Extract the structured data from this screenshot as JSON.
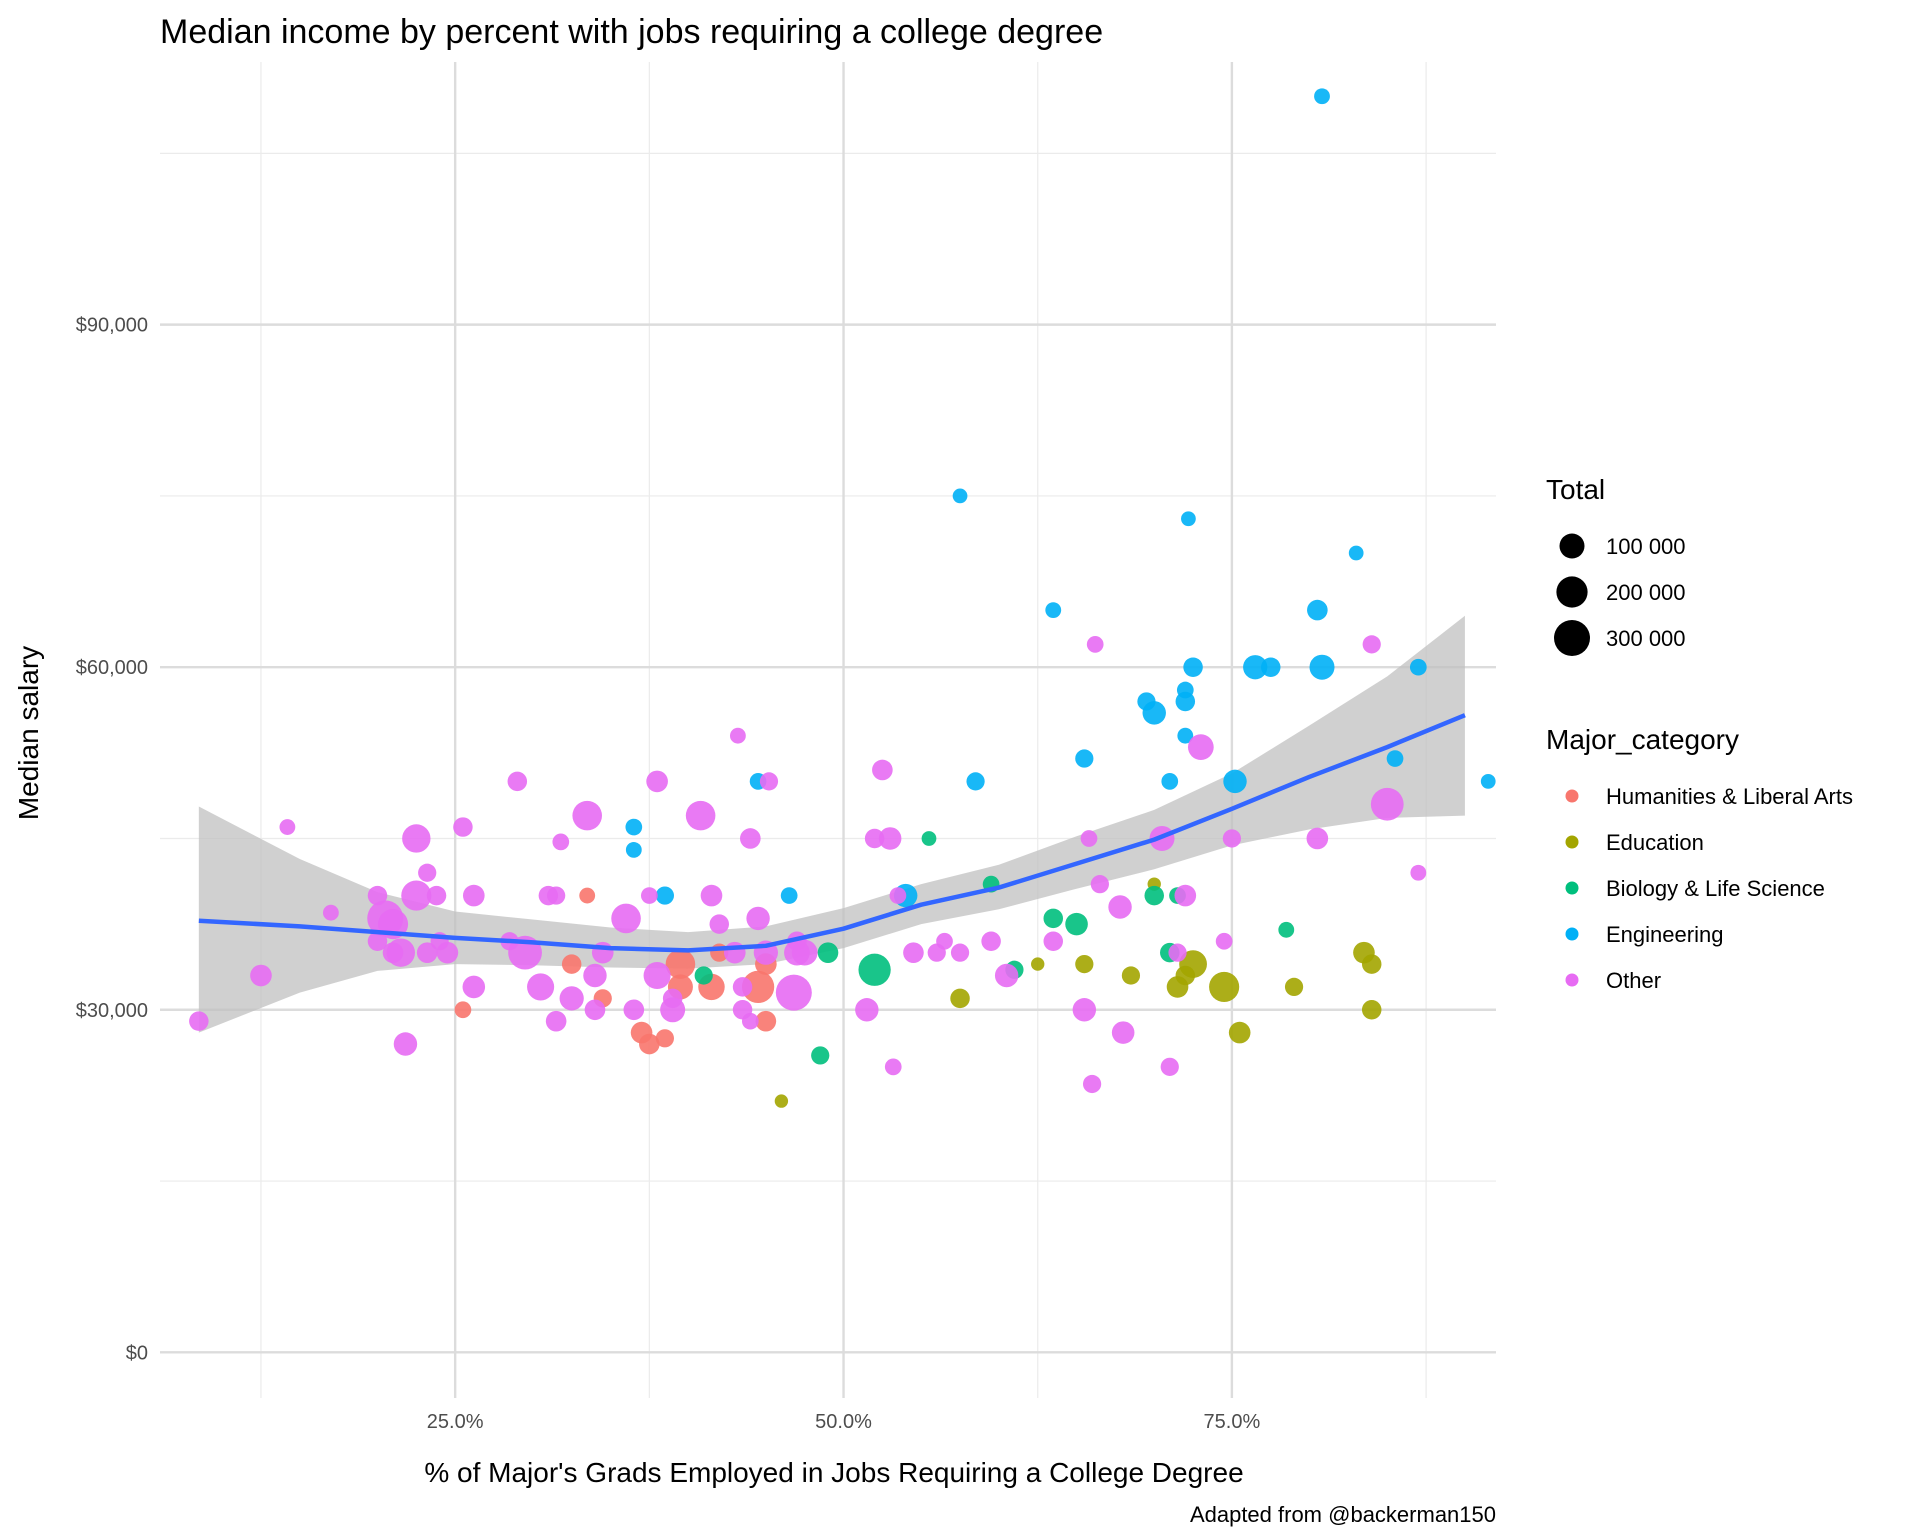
{
  "chart_data": {
    "type": "scatter",
    "title": "Median income by percent with jobs requiring a college degree",
    "xlabel": "% of Major's Grads Employed in Jobs Requiring a College Degree",
    "ylabel": "Median salary",
    "caption": "Adapted from @backerman150",
    "xlim": [
      0.06,
      0.92
    ],
    "ylim": [
      -4000,
      113000
    ],
    "x_ticks": [
      0.25,
      0.5,
      0.75
    ],
    "x_tick_labels": [
      "25.0%",
      "50.0%",
      "75.0%"
    ],
    "x_minor_ticks": [
      0.125,
      0.375,
      0.625,
      0.875
    ],
    "y_ticks": [
      0,
      30000,
      60000,
      90000
    ],
    "y_tick_labels": [
      "$0",
      "$30,000",
      "$60,000",
      "$90,000"
    ],
    "y_minor_ticks": [
      15000,
      45000,
      75000,
      105000
    ],
    "grid": true,
    "legend_position": "right",
    "color_legend": {
      "title": "Major_category",
      "entries": [
        {
          "label": "Humanities & Liberal Arts",
          "color": "#F8766D"
        },
        {
          "label": "Education",
          "color": "#A3A500"
        },
        {
          "label": "Biology & Life Science",
          "color": "#00BF7D"
        },
        {
          "label": "Engineering",
          "color": "#00B0F6"
        },
        {
          "label": "Other",
          "color": "#E76BF3"
        }
      ]
    },
    "size_legend": {
      "title": "Total",
      "entries": [
        {
          "label": "100 000",
          "value": 100000
        },
        {
          "label": "200 000",
          "value": 200000
        },
        {
          "label": "300 000",
          "value": 300000
        }
      ]
    },
    "point_alpha": 0.9,
    "series": [
      {
        "name": "Humanities & Liberal Arts",
        "points": [
          [
            0.255,
            30000,
            20000
          ],
          [
            0.325,
            34000,
            40000
          ],
          [
            0.335,
            40000,
            15000
          ],
          [
            0.345,
            31000,
            30000
          ],
          [
            0.37,
            28000,
            60000
          ],
          [
            0.375,
            27000,
            50000
          ],
          [
            0.385,
            27500,
            30000
          ],
          [
            0.395,
            32000,
            100000
          ],
          [
            0.395,
            34000,
            170000
          ],
          [
            0.415,
            32000,
            120000
          ],
          [
            0.445,
            32000,
            220000
          ],
          [
            0.45,
            29000,
            50000
          ],
          [
            0.45,
            34000,
            60000
          ],
          [
            0.42,
            35000,
            30000
          ]
        ]
      },
      {
        "name": "Education",
        "points": [
          [
            0.46,
            22000,
            5000
          ],
          [
            0.575,
            31000,
            40000
          ],
          [
            0.625,
            34000,
            5000
          ],
          [
            0.655,
            34000,
            30000
          ],
          [
            0.685,
            33000,
            30000
          ],
          [
            0.7,
            41000,
            5000
          ],
          [
            0.715,
            32000,
            60000
          ],
          [
            0.725,
            34000,
            140000
          ],
          [
            0.72,
            33000,
            40000
          ],
          [
            0.745,
            32000,
            180000
          ],
          [
            0.755,
            28000,
            60000
          ],
          [
            0.79,
            32000,
            30000
          ],
          [
            0.835,
            35000,
            60000
          ],
          [
            0.84,
            34000,
            40000
          ],
          [
            0.84,
            30000,
            40000
          ]
        ]
      },
      {
        "name": "Biology & Life Science",
        "points": [
          [
            0.41,
            33000,
            30000
          ],
          [
            0.485,
            26000,
            30000
          ],
          [
            0.49,
            35000,
            50000
          ],
          [
            0.52,
            33500,
            220000
          ],
          [
            0.555,
            45000,
            10000
          ],
          [
            0.595,
            41000,
            20000
          ],
          [
            0.61,
            33500,
            30000
          ],
          [
            0.635,
            38000,
            40000
          ],
          [
            0.65,
            37500,
            70000
          ],
          [
            0.7,
            40000,
            40000
          ],
          [
            0.715,
            40000,
            20000
          ],
          [
            0.71,
            35000,
            40000
          ],
          [
            0.785,
            37000,
            15000
          ]
        ]
      },
      {
        "name": "Engineering",
        "points": [
          [
            0.365,
            46000,
            20000
          ],
          [
            0.365,
            44000,
            15000
          ],
          [
            0.385,
            40000,
            30000
          ],
          [
            0.445,
            50000,
            20000
          ],
          [
            0.465,
            40000,
            20000
          ],
          [
            0.54,
            40000,
            80000
          ],
          [
            0.575,
            75000,
            10000
          ],
          [
            0.585,
            50000,
            30000
          ],
          [
            0.635,
            65000,
            15000
          ],
          [
            0.655,
            52000,
            30000
          ],
          [
            0.695,
            57000,
            30000
          ],
          [
            0.7,
            56000,
            80000
          ],
          [
            0.71,
            50000,
            20000
          ],
          [
            0.72,
            57000,
            40000
          ],
          [
            0.72,
            58000,
            20000
          ],
          [
            0.72,
            54000,
            15000
          ],
          [
            0.722,
            73000,
            10000
          ],
          [
            0.725,
            60000,
            40000
          ],
          [
            0.752,
            50000,
            80000
          ],
          [
            0.765,
            60000,
            90000
          ],
          [
            0.775,
            60000,
            40000
          ],
          [
            0.805,
            65000,
            50000
          ],
          [
            0.808,
            60000,
            100000
          ],
          [
            0.808,
            110000,
            15000
          ],
          [
            0.83,
            70000,
            10000
          ],
          [
            0.855,
            52000,
            20000
          ],
          [
            0.87,
            60000,
            20000
          ],
          [
            0.915,
            50000,
            10000
          ]
        ]
      },
      {
        "name": "Other",
        "points": [
          [
            0.085,
            29000,
            40000
          ],
          [
            0.125,
            33000,
            60000
          ],
          [
            0.142,
            46000,
            15000
          ],
          [
            0.17,
            38500,
            15000
          ],
          [
            0.2,
            40000,
            40000
          ],
          [
            0.2,
            36000,
            40000
          ],
          [
            0.205,
            38000,
            300000
          ],
          [
            0.21,
            35000,
            50000
          ],
          [
            0.21,
            37500,
            180000
          ],
          [
            0.215,
            35000,
            150000
          ],
          [
            0.218,
            27000,
            80000
          ],
          [
            0.225,
            45000,
            150000
          ],
          [
            0.225,
            40000,
            180000
          ],
          [
            0.232,
            42000,
            30000
          ],
          [
            0.232,
            35000,
            50000
          ],
          [
            0.238,
            40000,
            40000
          ],
          [
            0.24,
            36000,
            30000
          ],
          [
            0.245,
            35000,
            60000
          ],
          [
            0.255,
            46000,
            40000
          ],
          [
            0.262,
            32000,
            70000
          ],
          [
            0.262,
            40000,
            60000
          ],
          [
            0.285,
            36000,
            30000
          ],
          [
            0.29,
            50000,
            40000
          ],
          [
            0.295,
            35000,
            250000
          ],
          [
            0.305,
            32000,
            130000
          ],
          [
            0.31,
            40000,
            40000
          ],
          [
            0.315,
            29000,
            50000
          ],
          [
            0.315,
            40000,
            30000
          ],
          [
            0.318,
            44700,
            20000
          ],
          [
            0.325,
            31000,
            90000
          ],
          [
            0.335,
            47000,
            170000
          ],
          [
            0.34,
            33000,
            80000
          ],
          [
            0.34,
            30000,
            50000
          ],
          [
            0.345,
            35000,
            60000
          ],
          [
            0.36,
            38000,
            170000
          ],
          [
            0.365,
            30000,
            50000
          ],
          [
            0.375,
            40000,
            20000
          ],
          [
            0.38,
            33000,
            130000
          ],
          [
            0.38,
            50000,
            60000
          ],
          [
            0.39,
            30000,
            100000
          ],
          [
            0.39,
            31000,
            40000
          ],
          [
            0.408,
            47000,
            170000
          ],
          [
            0.415,
            40000,
            60000
          ],
          [
            0.42,
            37500,
            40000
          ],
          [
            0.43,
            35000,
            60000
          ],
          [
            0.432,
            54000,
            15000
          ],
          [
            0.435,
            32000,
            40000
          ],
          [
            0.435,
            30000,
            40000
          ],
          [
            0.44,
            29000,
            20000
          ],
          [
            0.44,
            45000,
            50000
          ],
          [
            0.445,
            38000,
            80000
          ],
          [
            0.45,
            35000,
            90000
          ],
          [
            0.452,
            50000,
            30000
          ],
          [
            0.468,
            31500,
            300000
          ],
          [
            0.47,
            35000,
            110000
          ],
          [
            0.47,
            36000,
            40000
          ],
          [
            0.475,
            35000,
            110000
          ],
          [
            0.515,
            30000,
            80000
          ],
          [
            0.52,
            45000,
            40000
          ],
          [
            0.525,
            51000,
            50000
          ],
          [
            0.53,
            45000,
            70000
          ],
          [
            0.532,
            25000,
            20000
          ],
          [
            0.535,
            40000,
            20000
          ],
          [
            0.545,
            35000,
            50000
          ],
          [
            0.56,
            35000,
            30000
          ],
          [
            0.565,
            36000,
            20000
          ],
          [
            0.575,
            35000,
            30000
          ],
          [
            0.595,
            36000,
            40000
          ],
          [
            0.605,
            33000,
            80000
          ],
          [
            0.635,
            36000,
            40000
          ],
          [
            0.655,
            30000,
            80000
          ],
          [
            0.658,
            45000,
            20000
          ],
          [
            0.66,
            23500,
            30000
          ],
          [
            0.662,
            62000,
            20000
          ],
          [
            0.665,
            41000,
            30000
          ],
          [
            0.678,
            39000,
            80000
          ],
          [
            0.68,
            28000,
            70000
          ],
          [
            0.705,
            45000,
            100000
          ],
          [
            0.71,
            25000,
            30000
          ],
          [
            0.715,
            35000,
            30000
          ],
          [
            0.72,
            40000,
            60000
          ],
          [
            0.73,
            53000,
            110000
          ],
          [
            0.745,
            36000,
            20000
          ],
          [
            0.75,
            45000,
            30000
          ],
          [
            0.805,
            45000,
            60000
          ],
          [
            0.84,
            62000,
            30000
          ],
          [
            0.85,
            48000,
            230000
          ],
          [
            0.87,
            42000,
            15000
          ]
        ]
      }
    ],
    "smooth_line": {
      "color": "#3366FF",
      "band_color": "#C0C0C0",
      "points": [
        [
          0.085,
          37800,
          28000,
          47800
        ],
        [
          0.15,
          37300,
          31500,
          43200
        ],
        [
          0.2,
          36800,
          33400,
          40300
        ],
        [
          0.25,
          36300,
          34000,
          38600
        ],
        [
          0.3,
          35900,
          33900,
          37900
        ],
        [
          0.35,
          35400,
          33700,
          37200
        ],
        [
          0.4,
          35200,
          33600,
          36800
        ],
        [
          0.45,
          35600,
          34000,
          37300
        ],
        [
          0.5,
          37100,
          35400,
          38900
        ],
        [
          0.55,
          39200,
          37500,
          41000
        ],
        [
          0.6,
          40700,
          38800,
          42700
        ],
        [
          0.65,
          42800,
          40600,
          45200
        ],
        [
          0.7,
          44900,
          42300,
          47500
        ],
        [
          0.75,
          47600,
          44400,
          50700
        ],
        [
          0.8,
          50400,
          45800,
          54900
        ],
        [
          0.85,
          53000,
          46800,
          59200
        ],
        [
          0.9,
          55800,
          47000,
          64500
        ]
      ]
    }
  }
}
